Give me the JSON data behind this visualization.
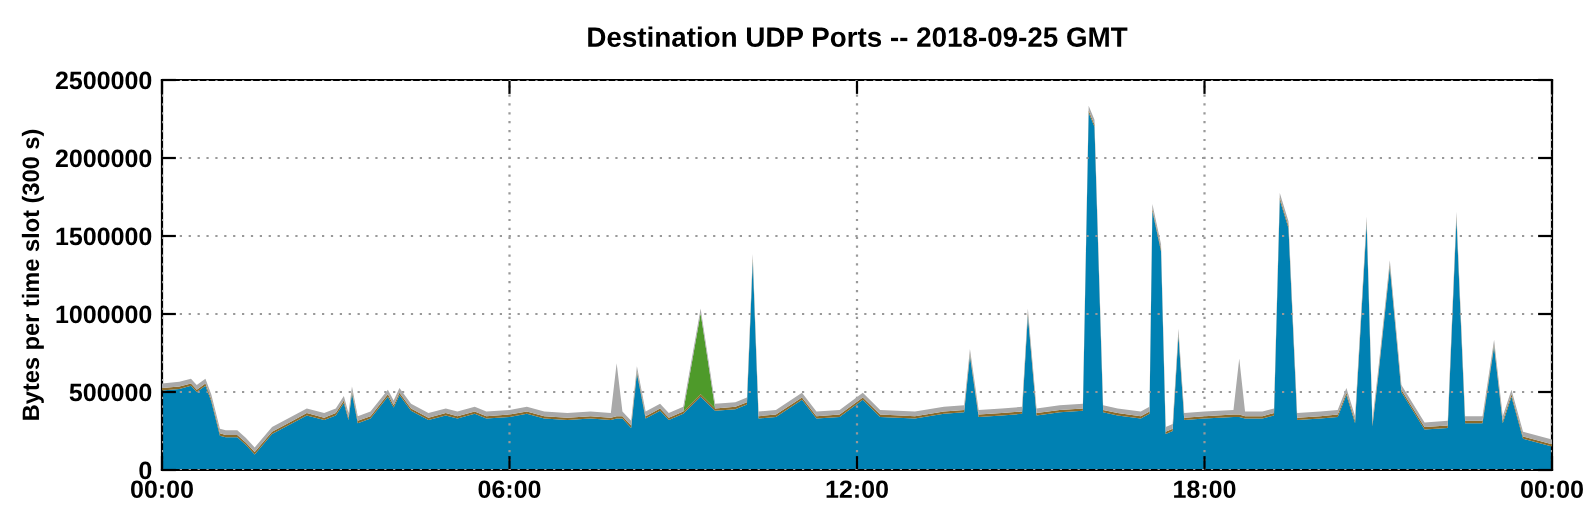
{
  "chart_data": {
    "type": "area",
    "stacked": true,
    "title": "Destination UDP Ports -- 2018-09-25 GMT",
    "ylabel": "Bytes per time slot (300 s)",
    "x": [
      0,
      0.3,
      0.5,
      0.6,
      0.75,
      0.85,
      1.0,
      1.1,
      1.3,
      1.45,
      1.6,
      1.9,
      2.2,
      2.5,
      2.8,
      3.0,
      3.14,
      3.22,
      3.28,
      3.38,
      3.6,
      3.9,
      4.0,
      4.1,
      4.3,
      4.6,
      4.9,
      5.1,
      5.4,
      5.6,
      6.0,
      6.3,
      6.6,
      7.0,
      7.4,
      7.75,
      7.85,
      7.95,
      8.1,
      8.2,
      8.35,
      8.6,
      8.75,
      9.0,
      9.3,
      9.55,
      9.9,
      10.1,
      10.2,
      10.3,
      10.6,
      11.05,
      11.3,
      11.7,
      12.1,
      12.4,
      13.0,
      13.5,
      13.85,
      13.95,
      14.1,
      14.5,
      14.85,
      14.95,
      15.1,
      15.5,
      15.9,
      16.0,
      16.1,
      16.25,
      16.5,
      16.9,
      17.05,
      17.1,
      17.25,
      17.33,
      17.45,
      17.55,
      17.65,
      18.0,
      18.5,
      18.6,
      18.7,
      19.0,
      19.2,
      19.3,
      19.45,
      19.6,
      20.0,
      20.3,
      20.45,
      20.6,
      20.8,
      20.9,
      21.0,
      21.2,
      21.4,
      21.8,
      22.2,
      22.35,
      22.5,
      22.8,
      23.0,
      23.15,
      23.3,
      23.5,
      24.0
    ],
    "series": [
      {
        "color": "#0081b3",
        "values": [
          510000,
          520000,
          540000,
          500000,
          540000,
          440000,
          220000,
          210000,
          210000,
          160000,
          100000,
          230000,
          290000,
          350000,
          320000,
          350000,
          430000,
          320000,
          490000,
          300000,
          330000,
          470000,
          400000,
          480000,
          380000,
          320000,
          350000,
          330000,
          360000,
          330000,
          340000,
          360000,
          330000,
          320000,
          330000,
          320000,
          330000,
          330000,
          270000,
          620000,
          330000,
          380000,
          320000,
          360000,
          470000,
          380000,
          390000,
          420000,
          1340000,
          330000,
          340000,
          450000,
          330000,
          340000,
          450000,
          340000,
          330000,
          360000,
          370000,
          730000,
          340000,
          350000,
          360000,
          990000,
          350000,
          370000,
          380000,
          2290000,
          2200000,
          370000,
          350000,
          330000,
          360000,
          1660000,
          1400000,
          230000,
          250000,
          860000,
          320000,
          330000,
          340000,
          340000,
          330000,
          330000,
          350000,
          1730000,
          1550000,
          320000,
          330000,
          340000,
          480000,
          300000,
          1580000,
          280000,
          600000,
          1300000,
          500000,
          260000,
          270000,
          1610000,
          300000,
          300000,
          790000,
          300000,
          470000,
          200000,
          150000
        ]
      },
      {
        "color": "#8a6a2a",
        "values": [
          15000,
          15000,
          15000,
          15000,
          15000,
          15000,
          15000,
          15000,
          15000,
          15000,
          15000,
          15000,
          15000,
          15000,
          15000,
          15000,
          15000,
          15000,
          15000,
          15000,
          15000,
          15000,
          15000,
          15000,
          15000,
          15000,
          15000,
          15000,
          15000,
          15000,
          15000,
          15000,
          15000,
          15000,
          15000,
          15000,
          15000,
          15000,
          15000,
          15000,
          15000,
          15000,
          15000,
          15000,
          15000,
          15000,
          15000,
          15000,
          15000,
          15000,
          15000,
          15000,
          15000,
          15000,
          15000,
          15000,
          15000,
          15000,
          15000,
          15000,
          15000,
          15000,
          15000,
          15000,
          15000,
          15000,
          15000,
          15000,
          15000,
          15000,
          15000,
          15000,
          15000,
          15000,
          15000,
          15000,
          15000,
          15000,
          15000,
          15000,
          15000,
          15000,
          15000,
          15000,
          15000,
          15000,
          15000,
          15000,
          15000,
          15000,
          15000,
          15000,
          15000,
          15000,
          15000,
          15000,
          15000,
          15000,
          15000,
          15000,
          15000,
          15000,
          15000,
          15000,
          15000,
          15000,
          15000
        ]
      },
      {
        "color": "#4e9a2a",
        "values": [
          0,
          0,
          0,
          0,
          0,
          0,
          0,
          0,
          0,
          0,
          0,
          0,
          0,
          0,
          0,
          0,
          0,
          0,
          0,
          0,
          0,
          0,
          0,
          0,
          0,
          0,
          0,
          0,
          0,
          0,
          0,
          0,
          0,
          0,
          0,
          0,
          0,
          0,
          0,
          0,
          0,
          0,
          0,
          0,
          520000,
          0,
          0,
          0,
          0,
          0,
          0,
          0,
          0,
          0,
          0,
          0,
          0,
          0,
          0,
          0,
          0,
          0,
          0,
          0,
          0,
          0,
          0,
          0,
          0,
          0,
          0,
          0,
          0,
          0,
          0,
          0,
          0,
          0,
          0,
          0,
          0,
          0,
          0,
          0,
          0,
          0,
          0,
          0,
          0,
          0,
          0,
          0,
          0,
          0,
          0,
          0,
          0,
          0,
          0,
          0,
          0,
          0,
          0,
          0,
          0,
          0,
          0
        ]
      },
      {
        "color": "#a9a9a9",
        "values": [
          30000,
          30000,
          30000,
          30000,
          30000,
          30000,
          30000,
          30000,
          30000,
          30000,
          30000,
          30000,
          30000,
          30000,
          30000,
          30000,
          30000,
          30000,
          30000,
          30000,
          30000,
          30000,
          30000,
          30000,
          30000,
          30000,
          30000,
          30000,
          30000,
          30000,
          30000,
          30000,
          30000,
          30000,
          30000,
          30000,
          340000,
          30000,
          30000,
          30000,
          30000,
          30000,
          30000,
          30000,
          30000,
          30000,
          30000,
          30000,
          30000,
          30000,
          30000,
          30000,
          30000,
          30000,
          30000,
          30000,
          30000,
          30000,
          30000,
          30000,
          30000,
          30000,
          30000,
          30000,
          30000,
          30000,
          30000,
          30000,
          30000,
          30000,
          30000,
          30000,
          30000,
          30000,
          30000,
          30000,
          30000,
          30000,
          30000,
          30000,
          30000,
          360000,
          30000,
          30000,
          30000,
          30000,
          30000,
          30000,
          30000,
          30000,
          30000,
          30000,
          30000,
          30000,
          30000,
          30000,
          30000,
          30000,
          30000,
          30000,
          30000,
          30000,
          30000,
          30000,
          30000,
          30000,
          30000
        ]
      }
    ],
    "xlim": [
      0,
      24
    ],
    "ylim": [
      0,
      2500000
    ],
    "xticks": [
      {
        "value": 0,
        "label": "00:00"
      },
      {
        "value": 6,
        "label": "06:00"
      },
      {
        "value": 12,
        "label": "12:00"
      },
      {
        "value": 18,
        "label": "18:00"
      },
      {
        "value": 24,
        "label": "00:00"
      }
    ],
    "yticks": [
      0,
      500000,
      1000000,
      1500000,
      2000000,
      2500000
    ],
    "grid": true,
    "legend": false
  }
}
